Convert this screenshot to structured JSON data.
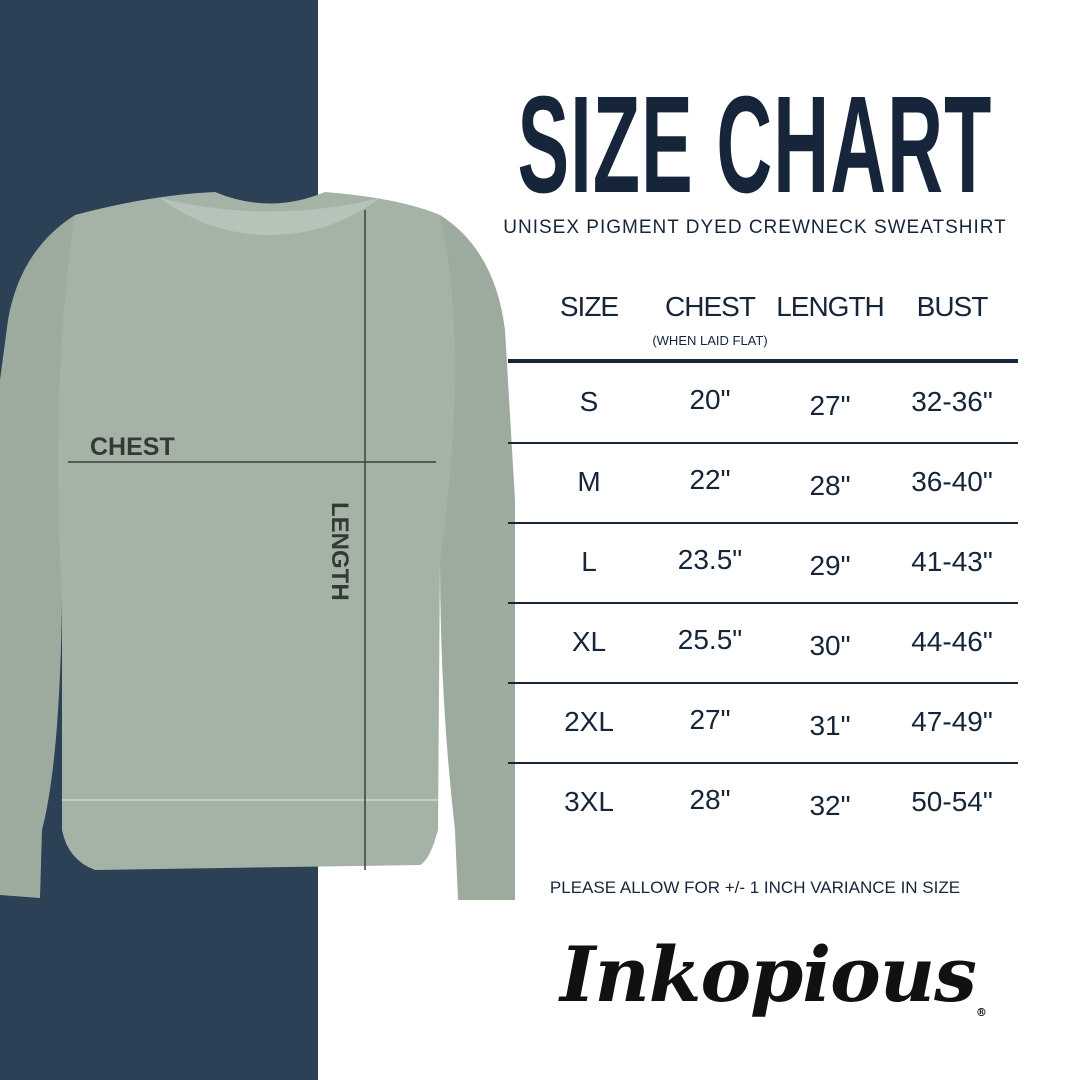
{
  "title": "SIZE CHART",
  "subtitle": "UNISEX PIGMENT DYED CREWNECK SWEATSHIRT",
  "diagram": {
    "chest_label": "CHEST",
    "length_label": "LENGTH"
  },
  "table": {
    "headers": [
      "SIZE",
      "CHEST",
      "LENGTH",
      "BUST"
    ],
    "chest_note": "(WHEN LAID FLAT)",
    "rows": [
      [
        "S",
        "20\"",
        "27\"",
        "32-36\""
      ],
      [
        "M",
        "22\"",
        "28\"",
        "36-40\""
      ],
      [
        "L",
        "23.5\"",
        "29\"",
        "41-43\""
      ],
      [
        "XL",
        "25.5\"",
        "30\"",
        "44-46\""
      ],
      [
        "2XL",
        "27\"",
        "31\"",
        "47-49\""
      ],
      [
        "3XL",
        "28\"",
        "32\"",
        "50-54\""
      ]
    ]
  },
  "note": "PLEASE ALLOW FOR +/- 1 INCH VARIANCE IN SIZE",
  "brand": {
    "logo_text": "Inkopious",
    "registered": "®"
  },
  "colors": {
    "panel": "#2c4155",
    "text": "#17253a",
    "garment": "#a5b3a7"
  }
}
